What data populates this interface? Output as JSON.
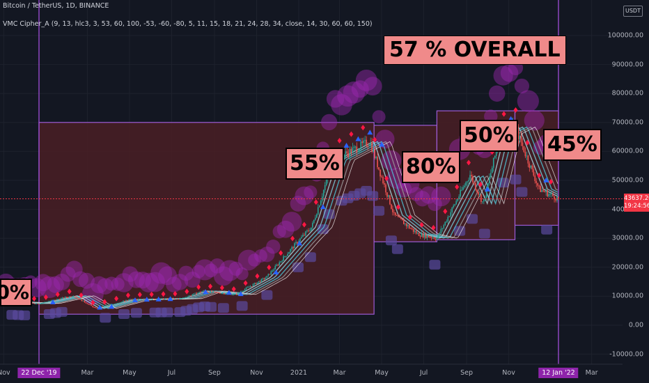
{
  "header": {
    "title": "Bitcoin / TetherUS, 1D, BINANCE",
    "indicator": "VMC Cipher_A (9, 13, hlc3, 3, 53, 60, 100, -53, -60, -80, 5, 11, 15, 18, 21, 24, 28, 34, close, 14, 30, 60, 60, 150)"
  },
  "price_axis": {
    "unit": "USDT",
    "current_price": "43637.20",
    "countdown": "19:24:56"
  },
  "colors": {
    "background": "#131722",
    "box_fill": "#4a1f24",
    "box_border": "#9c5cd6",
    "vline": "#a04ed8",
    "tag_fill": "#f08a8a",
    "candle_up": "#26a69a",
    "candle_down": "#ef5350",
    "price_line": "#f23645"
  },
  "chart_data": {
    "type": "line",
    "title": "",
    "xlabel": "",
    "ylabel": "",
    "ylim": [
      -12000,
      118000
    ],
    "grid": true,
    "x_ticks": [
      "Nov",
      "22 Dec '19",
      "Mar",
      "May",
      "Jul",
      "Sep",
      "Nov",
      "2021",
      "Mar",
      "May",
      "Jul",
      "Sep",
      "Nov",
      "12 Jan '22",
      "Mar"
    ],
    "y_ticks": [
      -10000,
      0,
      10000,
      20000,
      30000,
      40000,
      50000,
      60000,
      70000,
      80000,
      90000,
      100000
    ],
    "price_series": [
      {
        "date": "2019-10-15",
        "price": 8300
      },
      {
        "date": "2019-12-22",
        "price": 7500
      },
      {
        "date": "2020-02-10",
        "price": 10200
      },
      {
        "date": "2020-03-13",
        "price": 5800
      },
      {
        "date": "2020-05-01",
        "price": 8800
      },
      {
        "date": "2020-07-15",
        "price": 9200
      },
      {
        "date": "2020-08-15",
        "price": 11800
      },
      {
        "date": "2020-10-01",
        "price": 10600
      },
      {
        "date": "2020-11-15",
        "price": 16500
      },
      {
        "date": "2020-12-31",
        "price": 29000
      },
      {
        "date": "2021-01-20",
        "price": 34000
      },
      {
        "date": "2021-02-20",
        "price": 57000
      },
      {
        "date": "2021-04-14",
        "price": 63500
      },
      {
        "date": "2021-05-19",
        "price": 38000
      },
      {
        "date": "2021-06-22",
        "price": 31500
      },
      {
        "date": "2021-07-20",
        "price": 30000
      },
      {
        "date": "2021-09-06",
        "price": 52000
      },
      {
        "date": "2021-09-25",
        "price": 42000
      },
      {
        "date": "2021-10-20",
        "price": 66000
      },
      {
        "date": "2021-11-10",
        "price": 68500
      },
      {
        "date": "2021-12-15",
        "price": 47000
      },
      {
        "date": "2022-01-12",
        "price": 43637
      }
    ],
    "ranges": [
      {
        "label": "55%",
        "start": "2019-12-22",
        "end": "2021-04-20",
        "low": 3800,
        "high": 70000
      },
      {
        "label": "80%",
        "start": "2021-04-20",
        "end": "2021-07-20",
        "low": 28800,
        "high": 69000
      },
      {
        "label": "50%",
        "start": "2021-07-20",
        "end": "2021-11-10",
        "low": 29500,
        "high": 74000
      },
      {
        "label": "45%",
        "start": "2021-11-10",
        "end": "2022-01-12",
        "low": 34500,
        "high": 74000
      }
    ],
    "annotations": [
      "57 % OVERALL",
      "55%",
      "80%",
      "50%",
      "45%",
      "0%"
    ],
    "vlines": [
      "2019-12-22",
      "2022-01-12"
    ],
    "last_price": 43637.2
  }
}
